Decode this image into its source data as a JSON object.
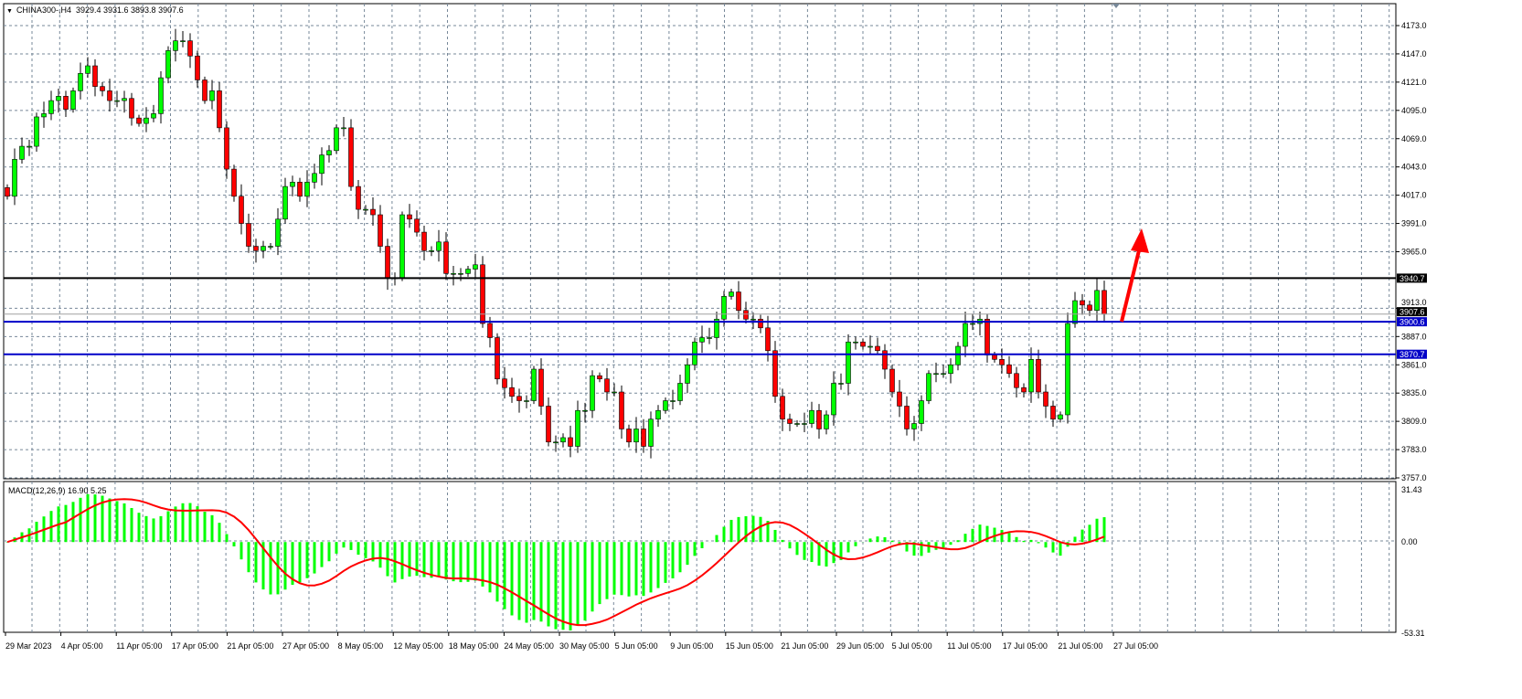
{
  "header": {
    "symbol": "CHINA300-,H4",
    "ohlc": "3929.4 3931.6 3893.8 3907.6"
  },
  "price_axis": {
    "ticks": [
      "4173.0",
      "4147.0",
      "4121.0",
      "4095.0",
      "4069.0",
      "4043.0",
      "4017.0",
      "3991.0",
      "3965.0",
      "3913.0",
      "3887.0",
      "3861.0",
      "3835.0",
      "3809.0",
      "3783.0",
      "3757.0"
    ],
    "range": [
      3757.0,
      4173.0
    ]
  },
  "levels": [
    {
      "price": 3940.7,
      "label": "3940.7",
      "color": "#000000"
    },
    {
      "price": 3900.6,
      "label": "3900.6",
      "color": "#0000c8"
    },
    {
      "price": 3870.7,
      "label": "3870.7",
      "color": "#0000c8"
    }
  ],
  "current_price": {
    "price": 3907.6,
    "label": "3907.6"
  },
  "macd": {
    "label": "MACD(12,26,9) 16.90 5.25",
    "fast": 12,
    "slow": 26,
    "signal": 9,
    "ticks": [
      "31.43",
      "0.00",
      "-53.31"
    ],
    "range": [
      -53.31,
      31.43
    ],
    "histogram_color": "#00ff00",
    "signal_color": "#ff0000"
  },
  "time_axis": [
    "29 Mar 2023",
    "4 Apr 05:00",
    "11 Apr 05:00",
    "17 Apr 05:00",
    "21 Apr 05:00",
    "27 Apr 05:00",
    "8 May 05:00",
    "12 May 05:00",
    "18 May 05:00",
    "24 May 05:00",
    "30 May 05:00",
    "5 Jun 05:00",
    "9 Jun 05:00",
    "15 Jun 05:00",
    "21 Jun 05:00",
    "29 Jun 05:00",
    "5 Jul 05:00",
    "11 Jul 05:00",
    "17 Jul 05:00",
    "21 Jul 05:00",
    "27 Jul 05:00"
  ],
  "colors": {
    "bull": "#00ff00",
    "bear": "#ff0000",
    "grid": "#778899",
    "arrow": "#ff0000"
  },
  "annotation": {
    "type": "arrow-up",
    "color": "#ff0000"
  },
  "closes": [
    4016,
    4050,
    4062,
    4062,
    4089,
    4092,
    4104,
    4108,
    4096,
    4113,
    4129,
    4136,
    4117,
    4113,
    4104,
    4104,
    4106,
    4088,
    4083,
    4088,
    4092,
    4125,
    4150,
    4159,
    4159,
    4145,
    4123,
    4104,
    4113,
    4079,
    4041,
    4016,
    3991,
    3970,
    3966,
    3970,
    3970,
    3995,
    4025,
    4029,
    4016,
    4029,
    4037,
    4054,
    4058,
    4079,
    4079,
    4025,
    4004,
    4004,
    3999,
    3970,
    3941,
    3941,
    3999,
    3995,
    3983,
    3966,
    3966,
    3974,
    3945,
    3945,
    3945,
    3949,
    3953,
    3899,
    3886,
    3848,
    3840,
    3832,
    3828,
    3828,
    3857,
    3823,
    3790,
    3790,
    3794,
    3786,
    3819,
    3819,
    3851,
    3848,
    3836,
    3836,
    3802,
    3790,
    3802,
    3786,
    3811,
    3819,
    3828,
    3828,
    3844,
    3861,
    3882,
    3886,
    3886,
    3903,
    3924,
    3928,
    3911,
    3903,
    3903,
    3895,
    3874,
    3832,
    3811,
    3807,
    3807,
    3807,
    3819,
    3802,
    3815,
    3844,
    3844,
    3882,
    3882,
    3878,
    3878,
    3874,
    3857,
    3836,
    3823,
    3802,
    3807,
    3828,
    3853,
    3853,
    3853,
    3861,
    3878,
    3899,
    3899,
    3903,
    3870,
    3866,
    3861,
    3853,
    3840,
    3836,
    3866,
    3836,
    3823,
    3811,
    3815,
    3899,
    3920,
    3916,
    3911,
    3929.4,
    3907.6
  ]
}
